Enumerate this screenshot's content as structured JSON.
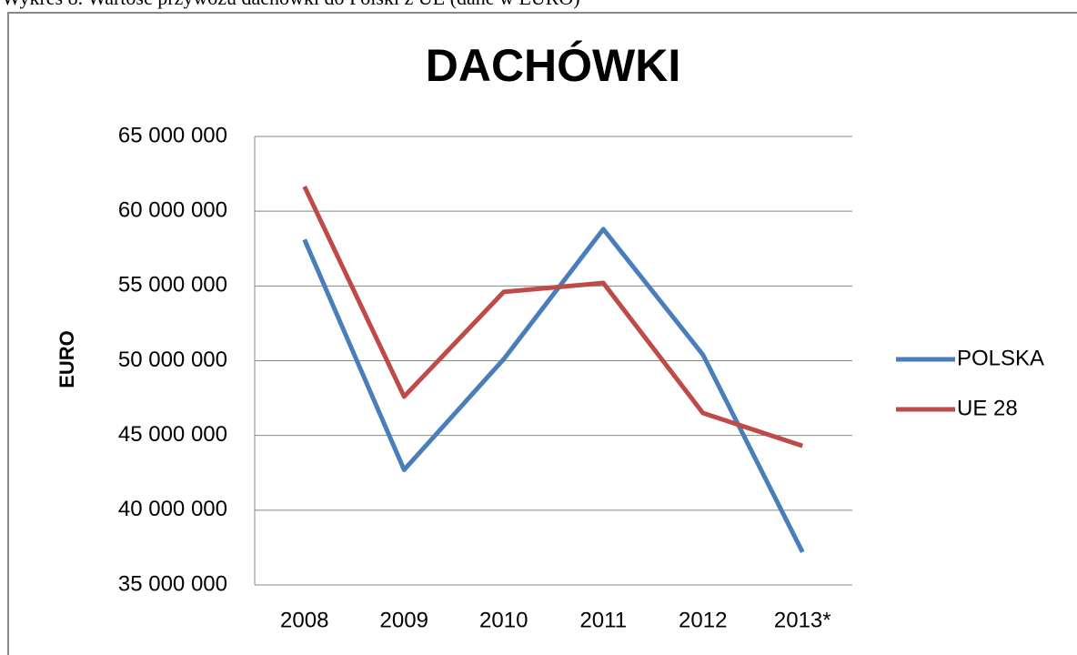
{
  "chart_data": {
    "type": "line",
    "caption": "Wykres 8.        Wartość przywozu dachówki do Polski z UE (dane w EURO)",
    "title": "DACHÓWKI",
    "y_label": "EURO",
    "categories": [
      "2008",
      "2009",
      "2010",
      "2011",
      "2012",
      "2013*"
    ],
    "series": [
      {
        "name": "POLSKA",
        "color": "#4a7ebb",
        "values": [
          58100000,
          42700000,
          50100000,
          58800000,
          50400000,
          37200000
        ]
      },
      {
        "name": "UE 28",
        "color": "#be4b48",
        "values": [
          61650000,
          47600000,
          54600000,
          55200000,
          46500000,
          44300000
        ]
      }
    ],
    "ylim": [
      35000000,
      65000000
    ],
    "yticks": [
      {
        "value": 35000000,
        "label": "35 000 000"
      },
      {
        "value": 40000000,
        "label": "40 000 000"
      },
      {
        "value": 45000000,
        "label": "45 000 000"
      },
      {
        "value": 50000000,
        "label": "50 000 000"
      },
      {
        "value": 55000000,
        "label": "55 000 000"
      },
      {
        "value": 60000000,
        "label": "60 000 000"
      },
      {
        "value": 65000000,
        "label": "65 000 000"
      }
    ],
    "grid": true,
    "legend": "right"
  }
}
